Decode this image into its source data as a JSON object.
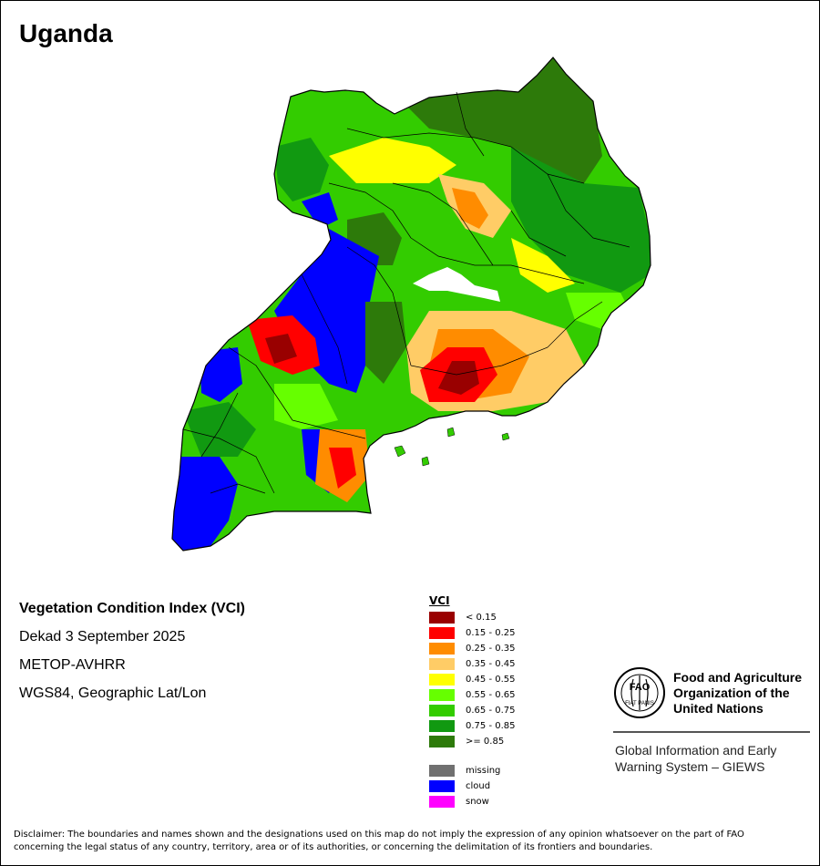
{
  "map": {
    "title": "Uganda"
  },
  "info": {
    "index_name": "Vegetation Condition Index (VCI)",
    "period": "Dekad 3 September 2025",
    "sensor": "METOP-AVHRR",
    "projection": "WGS84, Geographic Lat/Lon"
  },
  "legend": {
    "title": "VCI",
    "classes": [
      {
        "label": "< 0.15",
        "color": "#990000"
      },
      {
        "label": "0.15 - 0.25",
        "color": "#ff0000"
      },
      {
        "label": "0.25 - 0.35",
        "color": "#ff8c00"
      },
      {
        "label": "0.35 - 0.45",
        "color": "#ffcc66"
      },
      {
        "label": "0.45 - 0.55",
        "color": "#ffff00"
      },
      {
        "label": "0.55 - 0.65",
        "color": "#66ff00"
      },
      {
        "label": "0.65 - 0.75",
        "color": "#33cc00"
      },
      {
        "label": "0.75 - 0.85",
        "color": "#119911"
      },
      {
        "label": ">= 0.85",
        "color": "#2d7a0a"
      }
    ],
    "special": [
      {
        "label": "missing",
        "color": "#707070"
      },
      {
        "label": "cloud",
        "color": "#0000ff"
      },
      {
        "label": "snow",
        "color": "#ff00ff"
      }
    ]
  },
  "logo": {
    "org_line1": "Food and Agriculture",
    "org_line2": "Organization of the",
    "org_line3": "United Nations",
    "emblem_text": "FAO",
    "emblem_motto": "FIAT PANIS",
    "system_line1": "Global Information and Early",
    "system_line2": "Warning System – GIEWS"
  },
  "disclaimer": {
    "line1": "Disclaimer: The boundaries and names shown and the designations used on this map do not imply the expression of any opinion whatsoever on the part of FAO",
    "line2": "concerning the legal status of any country, territory, area or of its authorities, or concerning the delimitation of its frontiers and boundaries."
  }
}
